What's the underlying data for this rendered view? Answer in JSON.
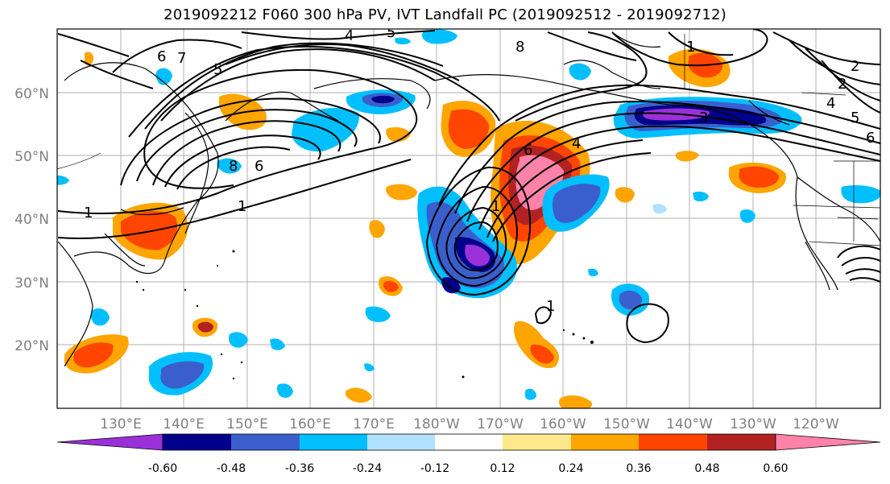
{
  "title": "2019092212 F060 300 hPa PV, IVT Landfall PC (2019092512 - 2019092712)",
  "map": {
    "lat_ticks": [
      "60°N",
      "50°N",
      "40°N",
      "30°N",
      "20°N"
    ],
    "lon_ticks": [
      "130°E",
      "140°E",
      "150°E",
      "160°E",
      "170°E",
      "180°W",
      "170°W",
      "160°W",
      "150°W",
      "140°W",
      "130°W",
      "120°W"
    ],
    "tick_color": "#808080",
    "contour_labels": [
      "4",
      "5",
      "6",
      "7",
      "8",
      "5",
      "6",
      "8",
      "1",
      "1",
      "1",
      "6",
      "1",
      "4",
      "2",
      "3",
      "2",
      "4",
      "5",
      "6",
      "1"
    ]
  },
  "colorbar": {
    "colors": [
      "#9b30d9",
      "#00008b",
      "#3a5fcd",
      "#00bfff",
      "#b0e2ff",
      "#ffffff",
      "#ffe88a",
      "#ffa500",
      "#ff4500",
      "#b22222",
      "#ff82ab"
    ],
    "tick_labels": [
      "-0.60",
      "-0.48",
      "-0.36",
      "-0.24",
      "-0.12",
      "0.12",
      "0.24",
      "0.36",
      "0.48",
      "0.60"
    ]
  }
}
